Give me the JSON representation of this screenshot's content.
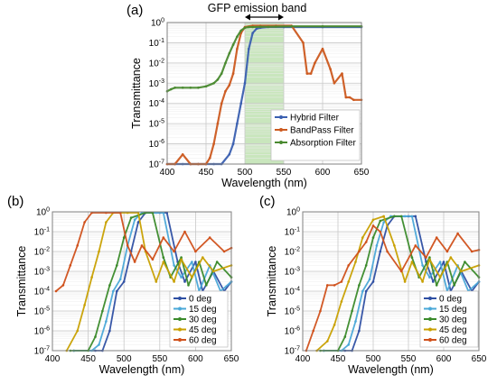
{
  "chart_data": [
    {
      "panel_label": "(a)",
      "type": "line",
      "xlabel": "Wavelength (nm)",
      "ylabel": "Transmittance",
      "xlim": [
        400,
        650
      ],
      "ylim_log10": [
        -7,
        0
      ],
      "y_scale": "log",
      "x_ticks": [
        "400",
        "450",
        "500",
        "550",
        "600",
        "650"
      ],
      "y_ticks": [
        "10-7",
        "10-6",
        "10-5",
        "10-4",
        "10-3",
        "10-2",
        "10-1",
        "100"
      ],
      "grid": true,
      "legend_position": "bottom-right",
      "annotation": {
        "text": "GFP emission band",
        "x_range": [
          500,
          550
        ],
        "shade_color": "#c9e6bd"
      },
      "series": [
        {
          "name": "Hybrid Filter",
          "color": "#3a5fb0",
          "marker": "+",
          "x": [
            400,
            410,
            420,
            430,
            440,
            450,
            460,
            470,
            480,
            485,
            490,
            495,
            500,
            505,
            510,
            515,
            520,
            530,
            550,
            600,
            650
          ],
          "y": [
            1e-07,
            1e-07,
            1e-07,
            1e-07,
            1e-07,
            1e-07,
            1e-07,
            1e-07,
            3e-07,
            1e-06,
            1e-05,
            0.0001,
            0.001,
            0.05,
            0.3,
            0.5,
            0.55,
            0.6,
            0.6,
            0.6,
            0.6
          ]
        },
        {
          "name": "BandPass Filter",
          "color": "#cc5a20",
          "marker": "o",
          "x": [
            400,
            410,
            420,
            430,
            440,
            450,
            455,
            460,
            465,
            470,
            475,
            480,
            485,
            490,
            495,
            500,
            510,
            520,
            540,
            560,
            575,
            580,
            585,
            590,
            600,
            610,
            615,
            625,
            630,
            635,
            640,
            650
          ],
          "y": [
            1e-07,
            1e-07,
            3e-07,
            1e-07,
            1e-07,
            1e-07,
            2e-07,
            1e-06,
            1e-05,
            0.0001,
            0.0004,
            0.0008,
            0.003,
            0.05,
            0.3,
            0.6,
            0.7,
            0.7,
            0.7,
            0.7,
            0.1,
            0.003,
            0.003,
            0.01,
            0.05,
            0.005,
            0.001,
            0.003,
            0.0002,
            0.0002,
            0.00015,
            0.00015
          ]
        },
        {
          "name": "Absorption Filter",
          "color": "#4a8a30",
          "marker": "o",
          "x": [
            400,
            405,
            410,
            420,
            430,
            440,
            450,
            460,
            465,
            470,
            475,
            480,
            485,
            490,
            495,
            500,
            505,
            510,
            520,
            530,
            540,
            560,
            600,
            650
          ],
          "y": [
            0.0004,
            0.0005,
            0.0006,
            0.0006,
            0.0006,
            0.0006,
            0.0007,
            0.001,
            0.0015,
            0.003,
            0.01,
            0.03,
            0.08,
            0.2,
            0.4,
            0.55,
            0.6,
            0.6,
            0.62,
            0.62,
            0.63,
            0.65,
            0.65,
            0.65
          ]
        }
      ]
    },
    {
      "panel_label": "(b)",
      "type": "line",
      "xlabel": "Wavelength (nm)",
      "ylabel": "Transmittance",
      "xlim": [
        400,
        650
      ],
      "ylim_log10": [
        -7,
        0
      ],
      "y_scale": "log",
      "x_ticks": [
        "400",
        "450",
        "500",
        "550",
        "600",
        "650"
      ],
      "y_ticks": [
        "10-7",
        "10-6",
        "10-5",
        "10-4",
        "10-3",
        "10-2",
        "10-1",
        "100"
      ],
      "grid": true,
      "legend_position": "bottom-right",
      "series": [
        {
          "name": "0 deg",
          "color": "#2e4fa3",
          "x": [
            430,
            460,
            470,
            480,
            490,
            500,
            510,
            520,
            530,
            550,
            560,
            575,
            585,
            600,
            610,
            625,
            640,
            650
          ],
          "y": [
            1e-07,
            1e-07,
            1e-07,
            1e-06,
            0.0001,
            0.0003,
            0.01,
            0.3,
            0.9,
            0.9,
            0.9,
            0.003,
            0.0003,
            0.003,
            0.0001,
            0.001,
            0.0001,
            0.0003
          ]
        },
        {
          "name": "15 deg",
          "color": "#4aa8d8",
          "x": [
            430,
            455,
            465,
            475,
            485,
            495,
            505,
            515,
            525,
            545,
            555,
            570,
            580,
            595,
            605,
            620,
            635,
            650
          ],
          "y": [
            1e-07,
            1e-07,
            2e-07,
            3e-06,
            0.0001,
            0.0004,
            0.02,
            0.4,
            0.9,
            0.9,
            0.9,
            0.002,
            0.0005,
            0.003,
            0.0001,
            0.002,
            0.0001,
            0.0003
          ]
        },
        {
          "name": "30 deg",
          "color": "#3a8a2a",
          "x": [
            425,
            450,
            460,
            470,
            480,
            490,
            500,
            510,
            530,
            540,
            555,
            565,
            580,
            590,
            605,
            615,
            630,
            650
          ],
          "y": [
            1e-07,
            1e-07,
            5e-07,
            1e-05,
            0.0002,
            0.002,
            0.05,
            0.5,
            0.9,
            0.9,
            0.005,
            0.0005,
            0.005,
            0.0002,
            0.003,
            0.0002,
            0.003,
            0.0005
          ]
        },
        {
          "name": "45 deg",
          "color": "#c8a000",
          "x": [
            420,
            435,
            445,
            455,
            465,
            475,
            485,
            505,
            520,
            530,
            545,
            555,
            570,
            580,
            595,
            610,
            625,
            650
          ],
          "y": [
            1e-07,
            1e-06,
            2e-05,
            0.0005,
            0.01,
            0.3,
            0.9,
            0.9,
            0.9,
            0.01,
            0.0003,
            0.003,
            0.0003,
            0.004,
            0.0005,
            0.005,
            0.001,
            0.002
          ]
        },
        {
          "name": "60 deg",
          "color": "#d0501a",
          "x": [
            405,
            415,
            425,
            435,
            445,
            455,
            475,
            495,
            505,
            515,
            525,
            540,
            555,
            570,
            585,
            600,
            620,
            640,
            650
          ],
          "y": [
            0.0001,
            0.0002,
            0.002,
            0.02,
            0.3,
            0.9,
            0.9,
            0.9,
            0.02,
            0.003,
            0.02,
            0.004,
            0.05,
            0.01,
            0.1,
            0.01,
            0.05,
            0.01,
            0.015
          ]
        }
      ]
    },
    {
      "panel_label": "(c)",
      "type": "line",
      "xlabel": "Wavelength (nm)",
      "ylabel": "Transmittance",
      "xlim": [
        400,
        650
      ],
      "ylim_log10": [
        -7,
        0
      ],
      "y_scale": "log",
      "x_ticks": [
        "400",
        "450",
        "500",
        "550",
        "600",
        "650"
      ],
      "y_ticks": [
        "10-7",
        "10-6",
        "10-5",
        "10-4",
        "10-3",
        "10-2",
        "10-1",
        "100"
      ],
      "grid": true,
      "legend_position": "bottom-right",
      "series": [
        {
          "name": "0 deg",
          "color": "#2e4fa3",
          "x": [
            430,
            460,
            470,
            480,
            490,
            500,
            510,
            520,
            530,
            550,
            560,
            575,
            585,
            600,
            610,
            625,
            640,
            650
          ],
          "y": [
            1e-07,
            1e-07,
            1e-07,
            1e-06,
            0.0001,
            0.0003,
            0.01,
            0.2,
            0.6,
            0.6,
            0.6,
            0.003,
            0.0003,
            0.003,
            0.0001,
            0.001,
            0.0001,
            0.0003
          ]
        },
        {
          "name": "15 deg",
          "color": "#4aa8d8",
          "x": [
            430,
            455,
            465,
            475,
            485,
            495,
            505,
            515,
            525,
            545,
            555,
            570,
            580,
            595,
            605,
            620,
            635,
            650
          ],
          "y": [
            1e-07,
            1e-07,
            2e-07,
            3e-06,
            0.0001,
            0.0004,
            0.02,
            0.3,
            0.6,
            0.6,
            0.6,
            0.002,
            0.0005,
            0.003,
            0.0001,
            0.002,
            0.0001,
            0.0003
          ]
        },
        {
          "name": "30 deg",
          "color": "#3a8a2a",
          "x": [
            425,
            450,
            460,
            470,
            480,
            490,
            500,
            510,
            530,
            540,
            555,
            565,
            580,
            590,
            605,
            615,
            630,
            650
          ],
          "y": [
            1e-07,
            1e-07,
            5e-07,
            1e-05,
            0.0002,
            0.002,
            0.05,
            0.35,
            0.6,
            0.6,
            0.005,
            0.0005,
            0.005,
            0.0002,
            0.003,
            0.0002,
            0.003,
            0.0005
          ]
        },
        {
          "name": "45 deg",
          "color": "#c8a000",
          "x": [
            420,
            435,
            445,
            455,
            465,
            475,
            485,
            500,
            515,
            530,
            545,
            555,
            570,
            580,
            595,
            610,
            625,
            650
          ],
          "y": [
            1e-07,
            3e-07,
            2e-06,
            3e-05,
            0.0003,
            0.003,
            0.05,
            0.4,
            0.6,
            0.02,
            0.0003,
            0.003,
            0.0003,
            0.004,
            0.0005,
            0.005,
            0.001,
            0.002
          ]
        },
        {
          "name": "60 deg",
          "color": "#d0501a",
          "x": [
            405,
            415,
            425,
            435,
            445,
            455,
            465,
            480,
            490,
            500,
            510,
            520,
            540,
            560,
            575,
            590,
            605,
            620,
            640,
            650
          ],
          "y": [
            1e-07,
            1e-06,
            1e-05,
            0.0002,
            0.0002,
            0.0003,
            0.002,
            0.01,
            0.03,
            0.2,
            0.1,
            0.01,
            0.001,
            0.02,
            0.005,
            0.05,
            0.01,
            0.08,
            0.01,
            0.012
          ]
        }
      ]
    }
  ]
}
